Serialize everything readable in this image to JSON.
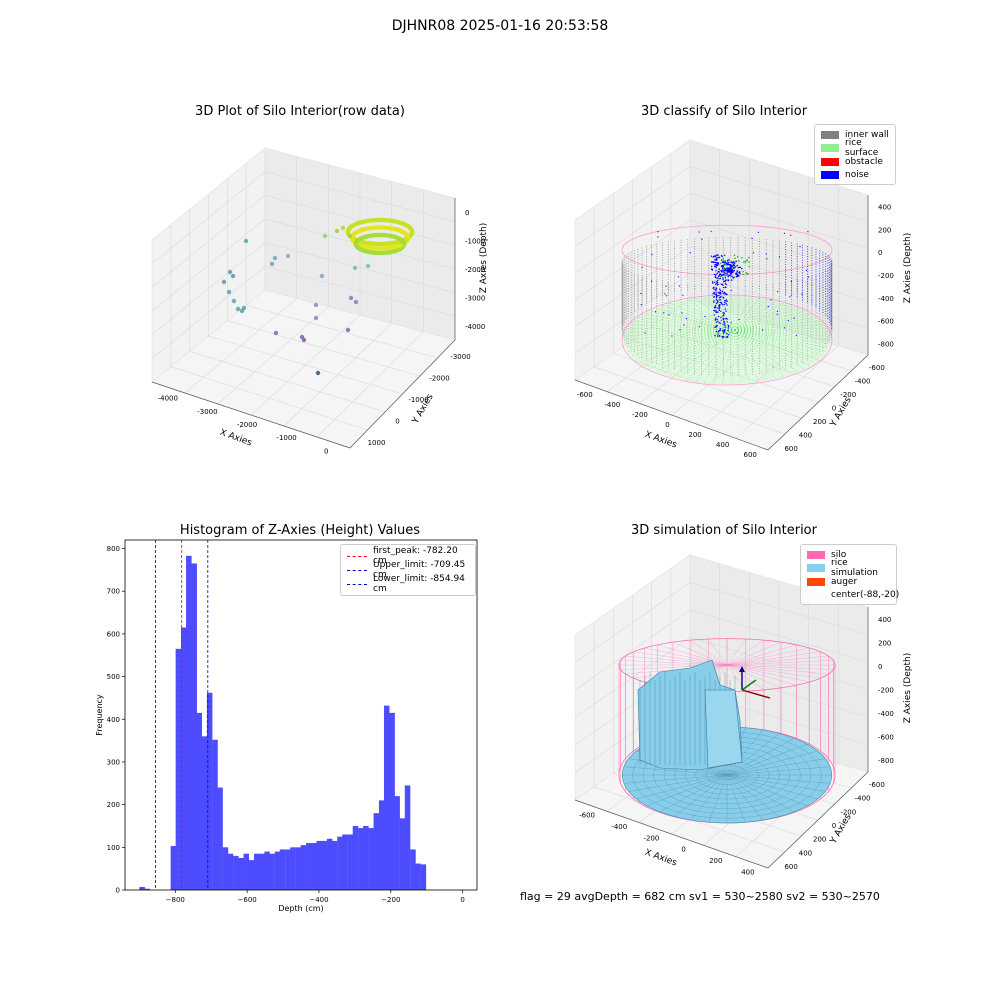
{
  "suptitle": "DJHNR08 2025-01-16 20:53:58",
  "status_text": "flag = 29  avgDepth = 682 cm  sv1 = 530~2580  sv2 = 530~2570",
  "colors": {
    "hist_bar": "#4d4dff",
    "first_peak_line": "#ff0000",
    "limit_line": "#0000cc",
    "inner_wall": "#808080",
    "rice_surface": "#90ee90",
    "obstacle": "#ff0000",
    "noise": "#0000ff",
    "silo": "#ff69b4",
    "rice_simulation": "#87ceeb",
    "auger": "#ff4500"
  },
  "chart_data": [
    {
      "type": "scatter3d",
      "title": "3D Plot of Silo Interior(row data)",
      "xlabel": "X Axies",
      "ylabel": "Y Axies",
      "zlabel": "Z Axies (Depth)",
      "x_ticks": [
        "-4000",
        "-3000",
        "-2000",
        "-1000",
        "0"
      ],
      "y_ticks": [
        "1000",
        "0",
        "-1000",
        "-2000",
        "-3000"
      ],
      "z_ticks": [
        "0",
        "-1000",
        "-2000",
        "-3000",
        "-4000"
      ]
    },
    {
      "type": "scatter3d",
      "title": "3D classify of Silo Interior",
      "xlabel": "X Axies",
      "ylabel": "Y Axies",
      "zlabel": "Z Axies (Depth)",
      "x_ticks": [
        "-600",
        "-400",
        "-200",
        "0",
        "200",
        "400",
        "600"
      ],
      "y_ticks": [
        "600",
        "400",
        "200",
        "0",
        "-200",
        "-400",
        "-600"
      ],
      "z_ticks": [
        "400",
        "200",
        "0",
        "-200",
        "-400",
        "-600",
        "-800"
      ],
      "legend": [
        "inner wall",
        "rice surface",
        "obstacle",
        "noise"
      ],
      "legend_placement": "top-right"
    },
    {
      "type": "bar",
      "title": "Histogram of Z-Axies (Height) Values",
      "xlabel": "Depth (cm)",
      "ylabel": "Frequency",
      "xlim": [
        -940,
        40
      ],
      "ylim": [
        0,
        820
      ],
      "x_ticks": [
        -800,
        -600,
        -400,
        -200,
        0
      ],
      "y_ticks": [
        0,
        100,
        200,
        300,
        400,
        500,
        600,
        700,
        800
      ],
      "bin_width": 14.5,
      "bins": [
        [
          -900,
          7
        ],
        [
          -886,
          3
        ],
        [
          -871,
          0
        ],
        [
          -857,
          0
        ],
        [
          -842,
          0
        ],
        [
          -828,
          0
        ],
        [
          -813,
          103
        ],
        [
          -799,
          565
        ],
        [
          -784,
          615
        ],
        [
          -770,
          783
        ],
        [
          -755,
          765
        ],
        [
          -741,
          415
        ],
        [
          -726,
          360
        ],
        [
          -712,
          462
        ],
        [
          -697,
          352
        ],
        [
          -683,
          240
        ],
        [
          -668,
          100
        ],
        [
          -654,
          85
        ],
        [
          -639,
          80
        ],
        [
          -625,
          75
        ],
        [
          -610,
          85
        ],
        [
          -596,
          70
        ],
        [
          -581,
          85
        ],
        [
          -567,
          85
        ],
        [
          -552,
          90
        ],
        [
          -538,
          85
        ],
        [
          -523,
          90
        ],
        [
          -509,
          95
        ],
        [
          -494,
          95
        ],
        [
          -480,
          100
        ],
        [
          -465,
          100
        ],
        [
          -451,
          105
        ],
        [
          -436,
          110
        ],
        [
          -422,
          110
        ],
        [
          -407,
          115
        ],
        [
          -393,
          115
        ],
        [
          -378,
          120
        ],
        [
          -364,
          115
        ],
        [
          -349,
          125
        ],
        [
          -335,
          130
        ],
        [
          -320,
          130
        ],
        [
          -306,
          150
        ],
        [
          -291,
          145
        ],
        [
          -277,
          150
        ],
        [
          -262,
          145
        ],
        [
          -248,
          180
        ],
        [
          -233,
          210
        ],
        [
          -219,
          432
        ],
        [
          -204,
          415
        ],
        [
          -190,
          220
        ],
        [
          -175,
          168
        ],
        [
          -161,
          245
        ],
        [
          -146,
          95
        ],
        [
          -132,
          62
        ],
        [
          -117,
          60
        ]
      ],
      "vlines": [
        {
          "label": "first_peak: -782.20 cm",
          "value": -782.2,
          "color": "#ff0000"
        },
        {
          "label": "Upper_limit: -709.45 cm",
          "value": -709.45,
          "color": "#0000cc"
        },
        {
          "label": "Lower_limit: -854.94 cm",
          "value": -854.94,
          "color": "#0000cc"
        }
      ],
      "legend_placement": "top-right"
    },
    {
      "type": "surface3d",
      "title": "3D simulation of Silo Interior",
      "xlabel": "X Axies",
      "ylabel": "Y Axies",
      "zlabel": "Z Axies (Depth)",
      "x_ticks": [
        "-600",
        "-400",
        "-200",
        "0",
        "200",
        "400"
      ],
      "y_ticks": [
        "600",
        "400",
        "200",
        "0",
        "-200",
        "-400",
        "-600"
      ],
      "z_ticks": [
        "400",
        "200",
        "0",
        "-200",
        "-400",
        "-600",
        "-800"
      ],
      "legend": [
        "silo",
        "rice simulation",
        "auger",
        "center(-88,-20)"
      ],
      "legend_placement": "top-right"
    }
  ]
}
